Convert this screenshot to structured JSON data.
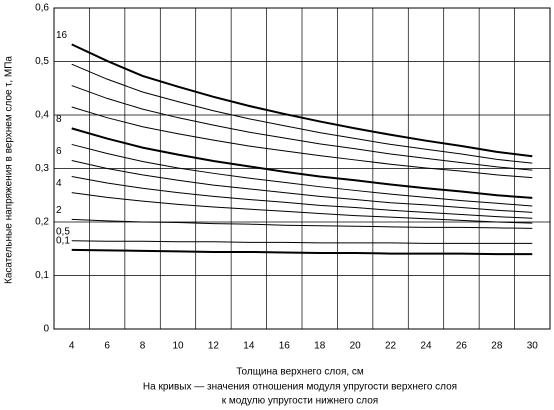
{
  "chart_data": {
    "type": "line",
    "x_label": "Толщина верхнего слоя, см",
    "y_label": "Касательные напряжения в верхнем слое τ, МПа",
    "notes": [
      "На кривых — значения отношения модуля упругости верхнего слоя",
      "к модулю упругости нижнего слоя"
    ],
    "categories": [
      "4",
      "6",
      "8",
      "10",
      "12",
      "14",
      "16",
      "18",
      "20",
      "22",
      "24",
      "26",
      "28",
      "30"
    ],
    "ylim": [
      0,
      0.6
    ],
    "yticks": [
      0,
      {
        "value": 0.1,
        "label": "0,1"
      },
      {
        "value": 0.2,
        "label": "0,2"
      },
      {
        "value": 0.3,
        "label": "0,3"
      },
      {
        "value": 0.4,
        "label": "0,4"
      },
      {
        "value": 0.5,
        "label": "0,5"
      },
      {
        "value": 0.6,
        "label": "0,6"
      }
    ],
    "grid": true,
    "series": [
      {
        "name": "16",
        "color": "#000000",
        "width": 2,
        "values": [
          0.532,
          0.501,
          0.473,
          0.453,
          0.434,
          0.417,
          0.402,
          0.388,
          0.375,
          0.363,
          0.352,
          0.342,
          0.331,
          0.323
        ]
      },
      {
        "color": "#000000",
        "width": 1,
        "values": [
          0.495,
          0.467,
          0.443,
          0.425,
          0.408,
          0.393,
          0.38,
          0.367,
          0.356,
          0.345,
          0.336,
          0.327,
          0.317,
          0.31
        ]
      },
      {
        "color": "#000000",
        "width": 1,
        "values": [
          0.455,
          0.431,
          0.411,
          0.395,
          0.381,
          0.368,
          0.357,
          0.346,
          0.337,
          0.327,
          0.319,
          0.311,
          0.303,
          0.297
        ]
      },
      {
        "color": "#000000",
        "width": 1,
        "values": [
          0.415,
          0.395,
          0.378,
          0.365,
          0.353,
          0.342,
          0.333,
          0.324,
          0.316,
          0.308,
          0.301,
          0.295,
          0.288,
          0.283
        ]
      },
      {
        "name": "8",
        "color": "#000000",
        "width": 2,
        "values": [
          0.375,
          0.356,
          0.339,
          0.326,
          0.314,
          0.304,
          0.294,
          0.285,
          0.278,
          0.27,
          0.263,
          0.257,
          0.25,
          0.245
        ]
      },
      {
        "color": "#000000",
        "width": 1,
        "values": [
          0.345,
          0.328,
          0.313,
          0.301,
          0.291,
          0.282,
          0.274,
          0.266,
          0.259,
          0.252,
          0.246,
          0.24,
          0.235,
          0.23
        ]
      },
      {
        "name": "6",
        "color": "#000000",
        "width": 1,
        "values": [
          0.315,
          0.3,
          0.288,
          0.278,
          0.269,
          0.262,
          0.255,
          0.248,
          0.242,
          0.236,
          0.232,
          0.227,
          0.222,
          0.218
        ]
      },
      {
        "color": "#000000",
        "width": 1,
        "values": [
          0.285,
          0.273,
          0.263,
          0.255,
          0.248,
          0.242,
          0.237,
          0.231,
          0.227,
          0.222,
          0.218,
          0.214,
          0.21,
          0.207
        ]
      },
      {
        "name": "4",
        "color": "#000000",
        "width": 1,
        "values": [
          0.255,
          0.246,
          0.239,
          0.233,
          0.228,
          0.224,
          0.22,
          0.216,
          0.212,
          0.209,
          0.206,
          0.203,
          0.2,
          0.198
        ]
      },
      {
        "name": "2",
        "color": "#000000",
        "width": 1,
        "values": [
          0.205,
          0.202,
          0.2,
          0.199,
          0.197,
          0.196,
          0.194,
          0.193,
          0.192,
          0.191,
          0.19,
          0.19,
          0.189,
          0.188
        ]
      },
      {
        "name": "0,5",
        "color": "#000000",
        "width": 1,
        "values": [
          0.165,
          0.164,
          0.164,
          0.163,
          0.163,
          0.162,
          0.162,
          0.161,
          0.161,
          0.161,
          0.16,
          0.16,
          0.16,
          0.16
        ]
      },
      {
        "name": "0,1",
        "color": "#000000",
        "width": 2,
        "values": [
          0.148,
          0.147,
          0.146,
          0.145,
          0.144,
          0.144,
          0.143,
          0.142,
          0.142,
          0.141,
          0.141,
          0.141,
          0.14,
          0.14
        ]
      }
    ]
  }
}
